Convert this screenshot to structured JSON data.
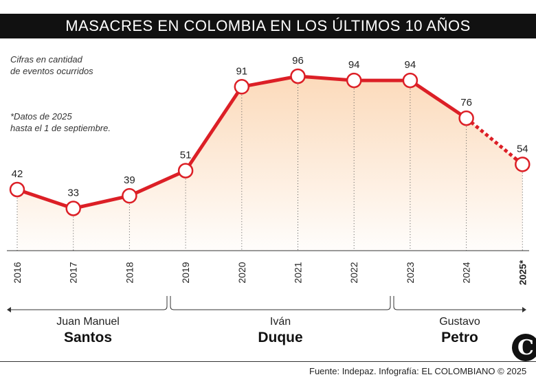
{
  "title": "MASACRES EN COLOMBIA EN LOS ÚLTIMOS 10 AÑOS",
  "notes": {
    "units": "Cifras en cantidad\nde eventos ocurridos",
    "asterisk": "*Datos de 2025\nhasta el 1 de septiembre."
  },
  "colors": {
    "line": "#dc1f26",
    "area_top": "#fbd6b3",
    "title_bg": "#111111"
  },
  "chart_data": {
    "type": "line",
    "x": [
      "2016",
      "2017",
      "2018",
      "2019",
      "2020",
      "2021",
      "2022",
      "2023",
      "2024",
      "2025*"
    ],
    "values": [
      42,
      33,
      39,
      51,
      91,
      96,
      94,
      94,
      76,
      54
    ],
    "partial_last_point": true,
    "bold_labels": [
      "2025*"
    ],
    "grid": false
  },
  "presidents": [
    {
      "first": "Juan Manuel",
      "last": "Santos"
    },
    {
      "first": "Iván",
      "last": "Duque"
    },
    {
      "first": "Gustavo",
      "last": "Petro"
    }
  ],
  "source": "Fuente: Indepaz. Infografía: EL COLOMBIANO © 2025",
  "logo": {
    "letter": "C",
    "icon": "el-colombiano-logo-icon"
  }
}
